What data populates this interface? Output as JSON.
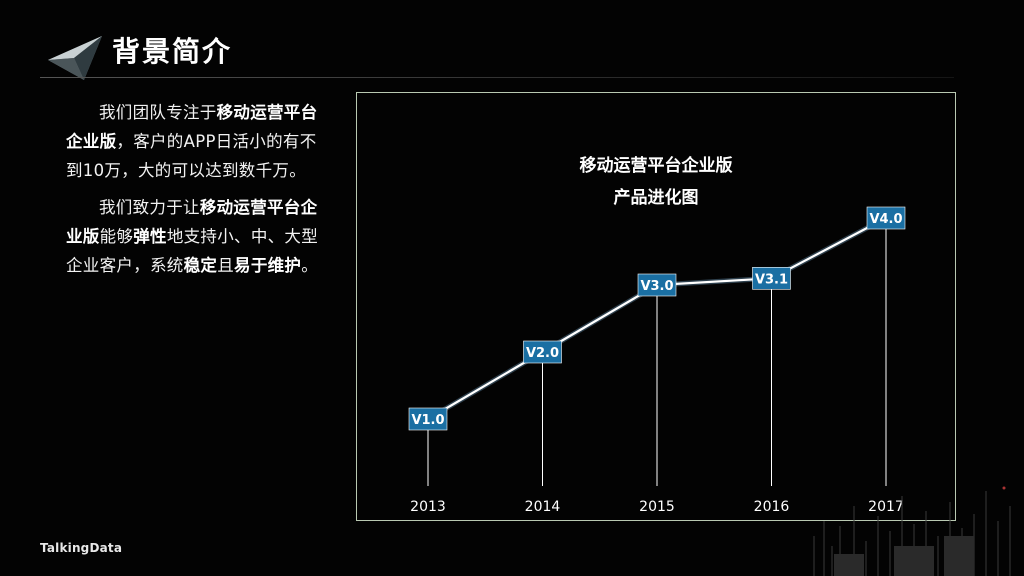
{
  "header": {
    "title": "背景简介"
  },
  "intro": {
    "p1": [
      {
        "t": "我们团队专注于",
        "b": false
      },
      {
        "t": "移动运营平台企业版",
        "b": true
      },
      {
        "t": "，客户的APP日活小的有不到10万，大的可以达到数千万。",
        "b": false
      }
    ],
    "p2": [
      {
        "t": "我们致力于让",
        "b": false
      },
      {
        "t": "移动运营平台企业版",
        "b": true
      },
      {
        "t": "能够",
        "b": false
      },
      {
        "t": "弹性",
        "b": true
      },
      {
        "t": "地支持小、中、大型企业客户，系统",
        "b": false
      },
      {
        "t": "稳定",
        "b": true
      },
      {
        "t": "且",
        "b": false
      },
      {
        "t": "易于维护",
        "b": true
      },
      {
        "t": "。",
        "b": false
      }
    ]
  },
  "chart_data": {
    "type": "line",
    "title": "移动运营平台企业版",
    "subtitle": "产品进化图",
    "categories": [
      "2013",
      "2014",
      "2015",
      "2016",
      "2017"
    ],
    "series": [
      {
        "values": [
          1.0,
          2.0,
          3.0,
          3.1,
          4.0
        ]
      }
    ],
    "data_labels": [
      "V1.0",
      "V2.0",
      "V3.0",
      "V3.1",
      "V4.0"
    ],
    "xlabel": "",
    "ylabel": "",
    "ylim": [
      0.5,
      4.5
    ],
    "grid": false,
    "colors": {
      "line": "#ffffff",
      "label_bg": "#1a6fa3",
      "label_text": "#ffffff",
      "drop_line": "#ffffff",
      "border": "#b9c9b2"
    }
  },
  "footer": {
    "brand": "TalkingData"
  }
}
